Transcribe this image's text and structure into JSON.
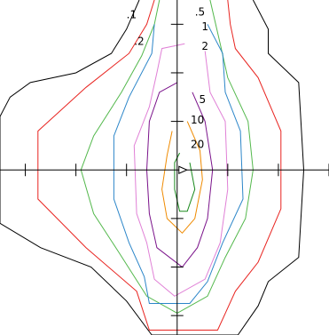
{
  "chart_data": {
    "type": "contour",
    "title": "",
    "xlabel": "",
    "ylabel": "",
    "xlim": [
      -3.5,
      3.0
    ],
    "ylim": [
      -3.4,
      3.5
    ],
    "axes_cross_at": [
      0,
      0
    ],
    "x_ticks": [
      -3,
      -2,
      -1,
      0,
      1,
      2,
      3
    ],
    "y_ticks": [
      -3,
      -2,
      -1,
      0,
      1,
      2,
      3
    ],
    "grid": false,
    "legend": "none",
    "levels": [
      {
        "label": ".1",
        "color": "#000000",
        "label_at": [
          -0.9,
          3.2
        ],
        "points": [
          [
            -0.75,
            3.5
          ],
          [
            -1.0,
            2.9
          ],
          [
            -1.3,
            2.4
          ],
          [
            -2.0,
            2.0
          ],
          [
            -2.9,
            1.8
          ],
          [
            -3.3,
            1.5
          ],
          [
            -3.5,
            1.1
          ],
          [
            -3.5,
            -1.1
          ],
          [
            -2.7,
            -1.6
          ],
          [
            -1.7,
            -2.0
          ],
          [
            -1.0,
            -2.7
          ],
          [
            -0.5,
            -3.4
          ],
          [
            1.2,
            -3.4
          ],
          [
            1.6,
            -2.8
          ],
          [
            1.8,
            -2.3
          ],
          [
            2.4,
            -1.8
          ],
          [
            2.5,
            0.0
          ],
          [
            2.4,
            1.8
          ],
          [
            1.8,
            2.4
          ],
          [
            1.8,
            2.9
          ],
          [
            1.5,
            3.5
          ]
        ]
      },
      {
        "label": ".2",
        "color": "#e8231f",
        "label_at": [
          -0.75,
          2.65
        ],
        "points": [
          [
            -0.45,
            3.5
          ],
          [
            -0.6,
            3.0
          ],
          [
            -0.95,
            2.4
          ],
          [
            -1.8,
            1.7
          ],
          [
            -2.75,
            0.8
          ],
          [
            -2.75,
            -0.6
          ],
          [
            -1.8,
            -1.6
          ],
          [
            -0.8,
            -2.5
          ],
          [
            -0.55,
            -3.3
          ],
          [
            0.8,
            -3.3
          ],
          [
            1.15,
            -2.5
          ],
          [
            1.6,
            -1.9
          ],
          [
            2.05,
            -0.8
          ],
          [
            2.05,
            0.8
          ],
          [
            1.6,
            1.9
          ],
          [
            1.15,
            2.5
          ],
          [
            1.05,
            3.0
          ],
          [
            1.0,
            3.5
          ]
        ]
      },
      {
        "label": ".5",
        "color": "#53b84c",
        "label_at": [
          0.45,
          3.25
        ],
        "points": [
          [
            -0.35,
            3.5
          ],
          [
            -0.45,
            3.0
          ],
          [
            -0.7,
            2.35
          ],
          [
            -1.1,
            1.6
          ],
          [
            -1.65,
            0.7
          ],
          [
            -1.9,
            0.0
          ],
          [
            -1.65,
            -0.9
          ],
          [
            -1.15,
            -1.7
          ],
          [
            -0.6,
            -2.6
          ],
          [
            0.0,
            -2.95
          ],
          [
            0.6,
            -2.6
          ],
          [
            0.95,
            -1.8
          ],
          [
            1.35,
            -1.0
          ],
          [
            1.5,
            0.0
          ],
          [
            1.4,
            1.0
          ],
          [
            1.0,
            1.9
          ],
          [
            0.85,
            2.6
          ],
          [
            0.75,
            3.05
          ],
          [
            0.65,
            3.5
          ]
        ]
      },
      {
        "label": "1",
        "color": "#2c86c9",
        "label_at": [
          0.55,
          2.95
        ],
        "points": [
          [
            0.6,
            3.0
          ],
          [
            0.9,
            2.4
          ],
          [
            0.95,
            1.6
          ],
          [
            1.25,
            0.8
          ],
          [
            1.3,
            -0.6
          ],
          [
            0.9,
            -1.5
          ],
          [
            0.6,
            -2.3
          ],
          [
            0.25,
            -2.75
          ],
          [
            -0.55,
            -2.75
          ],
          [
            -0.65,
            -2.2
          ],
          [
            -0.95,
            -1.5
          ],
          [
            -1.25,
            -0.6
          ],
          [
            -1.25,
            0.7
          ],
          [
            -0.95,
            1.5
          ],
          [
            -0.5,
            2.4
          ],
          [
            -0.45,
            3.0
          ]
        ]
      },
      {
        "label": "2",
        "color": "#e080d6",
        "label_at": [
          0.55,
          2.55
        ],
        "points": [
          [
            0.55,
            2.45
          ],
          [
            0.65,
            1.6
          ],
          [
            0.95,
            1.0
          ],
          [
            1.0,
            -0.4
          ],
          [
            0.85,
            -1.5
          ],
          [
            0.55,
            -2.25
          ],
          [
            -0.05,
            -2.6
          ],
          [
            -0.45,
            -2.25
          ],
          [
            -0.6,
            -1.5
          ],
          [
            -0.8,
            -0.9
          ],
          [
            -0.85,
            0.5
          ],
          [
            -0.55,
            1.3
          ],
          [
            -0.4,
            2.0
          ],
          [
            -0.3,
            2.5
          ],
          [
            0.15,
            2.6
          ]
        ]
      },
      {
        "label": "5",
        "color": "#7a128a",
        "label_at": [
          0.5,
          1.45
        ],
        "points": [
          [
            0.3,
            1.6
          ],
          [
            0.55,
            1.0
          ],
          [
            0.7,
            0.0
          ],
          [
            0.6,
            -1.0
          ],
          [
            0.4,
            -1.6
          ],
          [
            0.1,
            -2.0
          ],
          [
            -0.4,
            -1.6
          ],
          [
            -0.55,
            -0.9
          ],
          [
            -0.6,
            0.0
          ],
          [
            -0.55,
            1.0
          ],
          [
            -0.35,
            1.6
          ],
          [
            0.0,
            1.8
          ]
        ]
      },
      {
        "label": "10",
        "color": "#ef8a00",
        "label_at": [
          0.4,
          1.03
        ],
        "points": [
          [
            0.2,
            1.0
          ],
          [
            0.45,
            0.4
          ],
          [
            0.5,
            -0.2
          ],
          [
            0.35,
            -1.0
          ],
          [
            0.1,
            -1.3
          ],
          [
            -0.2,
            -1.0
          ],
          [
            -0.3,
            -0.4
          ],
          [
            -0.2,
            0.3
          ],
          [
            -0.1,
            0.8
          ]
        ]
      },
      {
        "label": "20",
        "color": "#1b8a1e",
        "label_at": [
          0.4,
          0.53
        ],
        "points": [
          [
            0.25,
            0.15
          ],
          [
            0.35,
            -0.4
          ],
          [
            0.2,
            -0.85
          ],
          [
            0.05,
            -0.85
          ],
          [
            -0.05,
            -0.4
          ],
          [
            -0.05,
            0.15
          ],
          [
            0.05,
            0.35
          ]
        ]
      }
    ]
  }
}
